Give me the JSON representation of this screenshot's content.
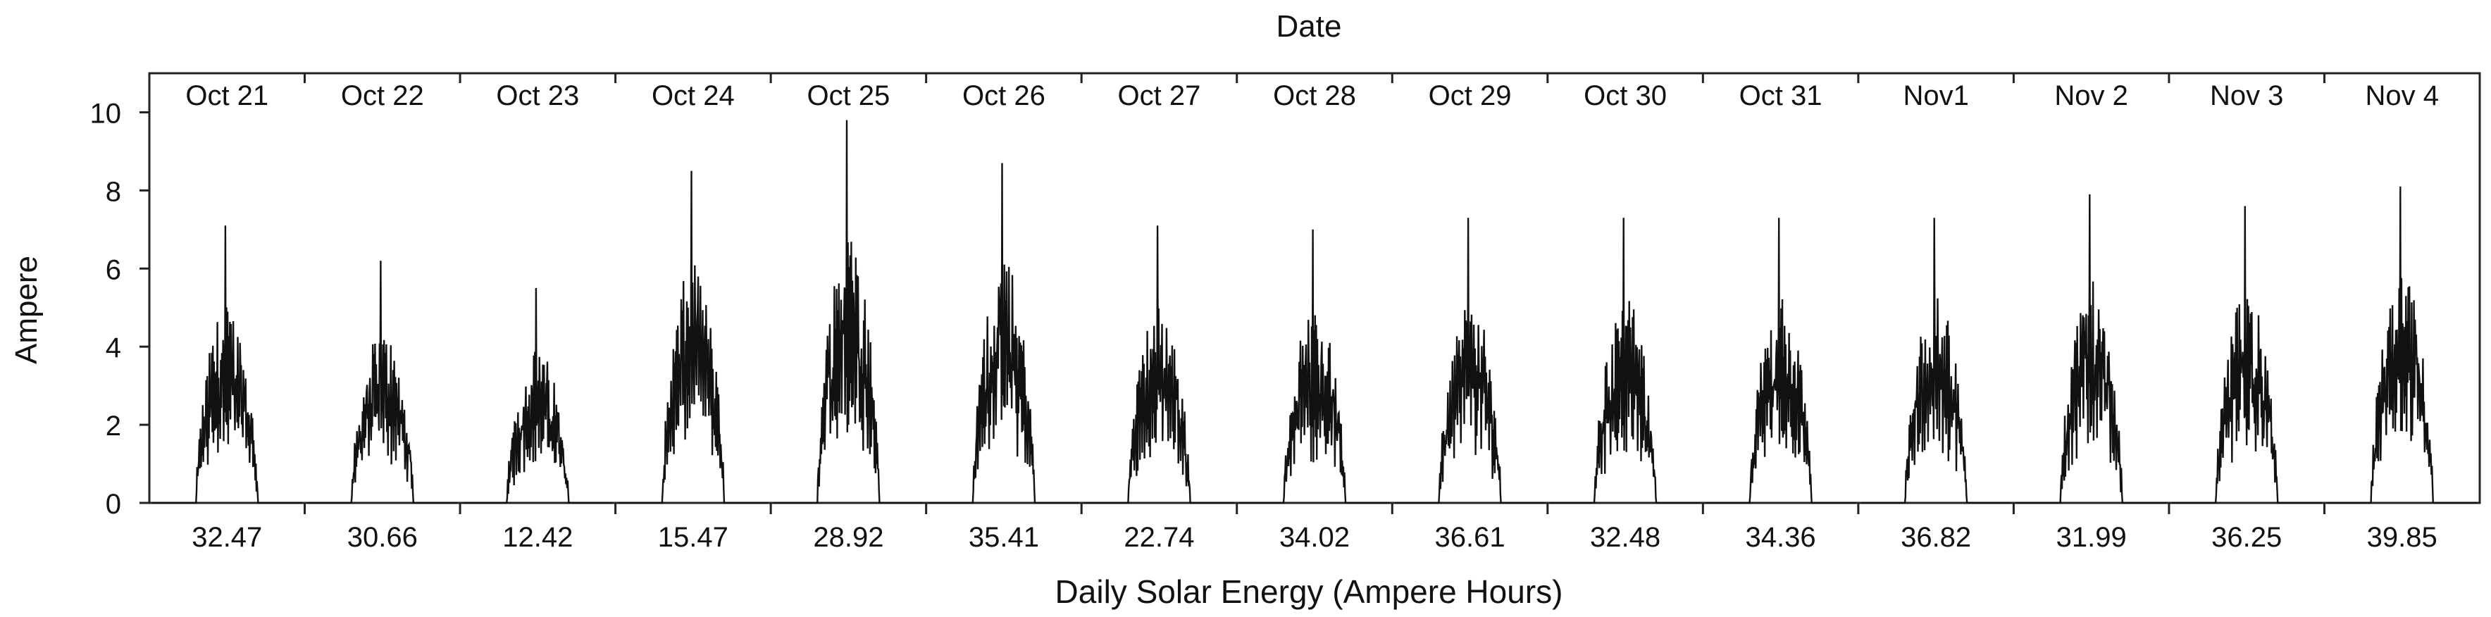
{
  "chart_data": {
    "type": "line",
    "title": "Date",
    "xlabel": "Daily Solar Energy (Ampere Hours)",
    "ylabel": "Ampere",
    "ylim": [
      0,
      11
    ],
    "yticks": [
      0,
      2,
      4,
      6,
      8,
      10
    ],
    "grid": false,
    "days": [
      {
        "date": "Oct 21",
        "energy": "32.47",
        "peak": 7.1
      },
      {
        "date": "Oct 22",
        "energy": "30.66",
        "peak": 6.2
      },
      {
        "date": "Oct 23",
        "energy": "12.42",
        "peak": 5.5
      },
      {
        "date": "Oct 24",
        "energy": "15.47",
        "peak": 8.5
      },
      {
        "date": "Oct 25",
        "energy": "28.92",
        "peak": 9.8
      },
      {
        "date": "Oct 26",
        "energy": "35.41",
        "peak": 8.7
      },
      {
        "date": "Oct 27",
        "energy": "22.74",
        "peak": 7.1
      },
      {
        "date": "Oct 28",
        "energy": "34.02",
        "peak": 7.0
      },
      {
        "date": "Oct 29",
        "energy": "36.61",
        "peak": 7.3
      },
      {
        "date": "Oct 30",
        "energy": "32.48",
        "peak": 7.3
      },
      {
        "date": "Oct 31",
        "energy": "34.36",
        "peak": 7.3
      },
      {
        "date": "Nov1",
        "energy": "36.82",
        "peak": 7.3
      },
      {
        "date": "Nov 2",
        "energy": "31.99",
        "peak": 7.9
      },
      {
        "date": "Nov 3",
        "energy": "36.25",
        "peak": 7.6
      },
      {
        "date": "Nov 4",
        "energy": "39.85",
        "peak": 8.1
      }
    ]
  }
}
